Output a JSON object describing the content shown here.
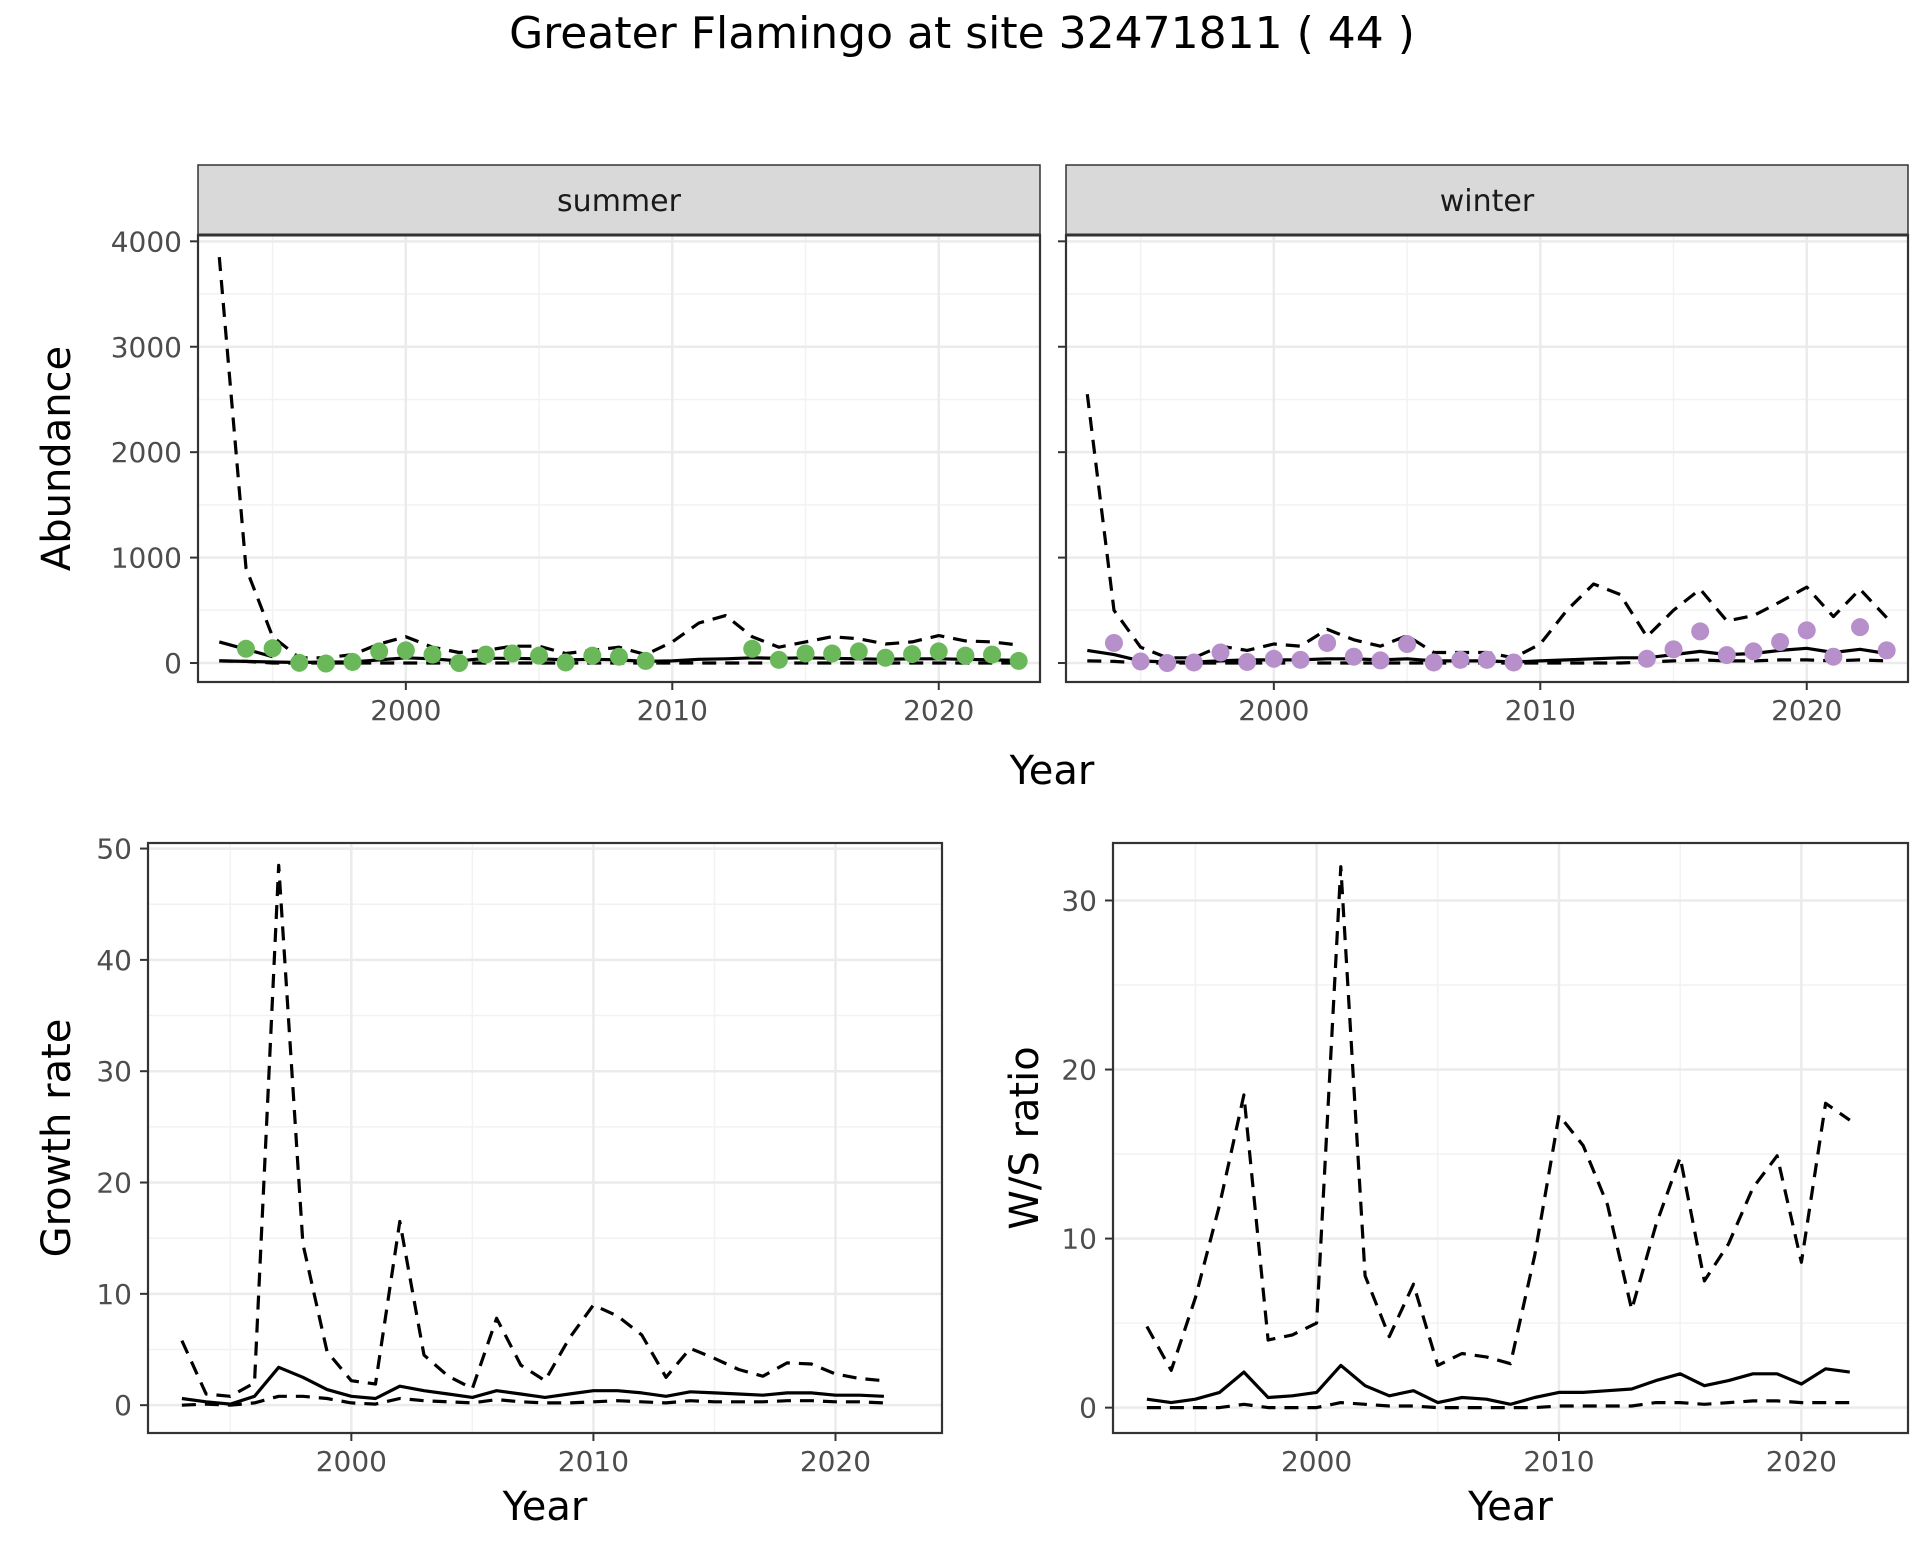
{
  "figure": {
    "title": "Greater Flamingo at site 32471811 ( 44 )"
  },
  "chart_data": [
    {
      "id": "summer",
      "type": "line",
      "facet_label": "summer",
      "xlabel": "",
      "ylabel": "Abundance",
      "xlim": [
        1992.2,
        2023.8
      ],
      "ylim": [
        -180,
        4060
      ],
      "x_ticks": [
        2000,
        2010,
        2020
      ],
      "y_ticks": [
        0,
        1000,
        2000,
        3000,
        4000
      ],
      "grid": true,
      "point_color": "#6ab85a",
      "years": [
        1993,
        1994,
        1995,
        1996,
        1997,
        1998,
        1999,
        2000,
        2001,
        2002,
        2003,
        2004,
        2005,
        2006,
        2007,
        2008,
        2009,
        2010,
        2011,
        2012,
        2013,
        2014,
        2015,
        2016,
        2017,
        2018,
        2019,
        2020,
        2021,
        2022,
        2023
      ],
      "mean": [
        20,
        15,
        10,
        5,
        10,
        10,
        30,
        50,
        40,
        20,
        45,
        45,
        40,
        30,
        35,
        30,
        15,
        20,
        35,
        40,
        50,
        45,
        50,
        45,
        40,
        35,
        40,
        40,
        35,
        30,
        25
      ],
      "upper": [
        3850,
        900,
        250,
        50,
        50,
        80,
        180,
        250,
        150,
        100,
        120,
        160,
        160,
        90,
        120,
        150,
        80,
        200,
        380,
        450,
        250,
        150,
        200,
        250,
        230,
        180,
        200,
        260,
        210,
        200,
        170
      ],
      "lower": [
        20,
        15,
        0,
        0,
        0,
        0,
        0,
        0,
        0,
        0,
        0,
        0,
        0,
        0,
        0,
        0,
        0,
        0,
        0,
        0,
        0,
        0,
        0,
        0,
        0,
        0,
        0,
        0,
        0,
        0,
        0
      ],
      "trend2": [
        200,
        130,
        60
      ],
      "points": [
        [
          1994,
          135
        ],
        [
          1995,
          140
        ],
        [
          1996,
          2
        ],
        [
          1997,
          -5
        ],
        [
          1998,
          10
        ],
        [
          1999,
          110
        ],
        [
          2000,
          120
        ],
        [
          2001,
          80
        ],
        [
          2002,
          0
        ],
        [
          2003,
          80
        ],
        [
          2004,
          90
        ],
        [
          2005,
          70
        ],
        [
          2006,
          5
        ],
        [
          2007,
          70
        ],
        [
          2008,
          60
        ],
        [
          2009,
          20
        ],
        [
          2013,
          135
        ],
        [
          2014,
          30
        ],
        [
          2015,
          90
        ],
        [
          2016,
          90
        ],
        [
          2017,
          110
        ],
        [
          2018,
          50
        ],
        [
          2019,
          85
        ],
        [
          2020,
          110
        ],
        [
          2021,
          70
        ],
        [
          2022,
          80
        ],
        [
          2023,
          20
        ]
      ]
    },
    {
      "id": "winter",
      "type": "line",
      "facet_label": "winter",
      "xlabel": "",
      "ylabel": "",
      "xlim": [
        1992.2,
        2023.8
      ],
      "ylim": [
        -180,
        4060
      ],
      "x_ticks": [
        2000,
        2010,
        2020
      ],
      "y_ticks": [
        0,
        1000,
        2000,
        3000,
        4000
      ],
      "grid": true,
      "point_color": "#b78fca",
      "years": [
        1993,
        1994,
        1995,
        1996,
        1997,
        1998,
        1999,
        2000,
        2001,
        2002,
        2003,
        2004,
        2005,
        2006,
        2007,
        2008,
        2009,
        2010,
        2011,
        2012,
        2013,
        2014,
        2015,
        2016,
        2017,
        2018,
        2019,
        2020,
        2021,
        2022,
        2023
      ],
      "mean": [
        120,
        80,
        20,
        10,
        10,
        20,
        30,
        30,
        30,
        40,
        40,
        30,
        40,
        20,
        20,
        20,
        10,
        20,
        30,
        40,
        50,
        50,
        80,
        110,
        80,
        90,
        120,
        140,
        100,
        130,
        90
      ],
      "upper": [
        2550,
        500,
        150,
        50,
        50,
        160,
        120,
        180,
        160,
        320,
        220,
        160,
        260,
        100,
        100,
        100,
        50,
        180,
        500,
        750,
        650,
        250,
        500,
        700,
        400,
        450,
        580,
        720,
        440,
        700,
        430
      ],
      "lower": [
        20,
        15,
        0,
        0,
        0,
        0,
        0,
        0,
        0,
        0,
        0,
        0,
        0,
        0,
        0,
        0,
        0,
        0,
        0,
        0,
        0,
        10,
        20,
        30,
        20,
        20,
        30,
        30,
        20,
        30,
        20
      ],
      "points": [
        [
          1994,
          190
        ],
        [
          1995,
          15
        ],
        [
          1996,
          0
        ],
        [
          1997,
          5
        ],
        [
          1998,
          100
        ],
        [
          1999,
          10
        ],
        [
          2000,
          40
        ],
        [
          2001,
          30
        ],
        [
          2002,
          190
        ],
        [
          2003,
          60
        ],
        [
          2004,
          25
        ],
        [
          2005,
          180
        ],
        [
          2006,
          5
        ],
        [
          2007,
          30
        ],
        [
          2008,
          30
        ],
        [
          2009,
          5
        ],
        [
          2014,
          40
        ],
        [
          2015,
          130
        ],
        [
          2016,
          300
        ],
        [
          2017,
          75
        ],
        [
          2018,
          110
        ],
        [
          2019,
          200
        ],
        [
          2020,
          310
        ],
        [
          2021,
          60
        ],
        [
          2022,
          340
        ],
        [
          2023,
          120
        ]
      ]
    },
    {
      "id": "growth",
      "type": "line",
      "xlabel": "Year",
      "ylabel": "Growth rate",
      "xlim": [
        1991.6,
        2024.4
      ],
      "ylim": [
        -2.5,
        50.5
      ],
      "x_ticks": [
        2000,
        2010,
        2020
      ],
      "y_ticks": [
        0,
        10,
        20,
        30,
        40,
        50
      ],
      "grid": true,
      "years": [
        1993,
        1994,
        1995,
        1996,
        1997,
        1998,
        1999,
        2000,
        2001,
        2002,
        2003,
        2004,
        2005,
        2006,
        2007,
        2008,
        2009,
        2010,
        2011,
        2012,
        2013,
        2014,
        2015,
        2016,
        2017,
        2018,
        2019,
        2020,
        2021,
        2022
      ],
      "mean": [
        0.6,
        0.3,
        0.1,
        0.8,
        3.4,
        2.5,
        1.4,
        0.8,
        0.6,
        1.7,
        1.3,
        1.0,
        0.7,
        1.3,
        1.0,
        0.7,
        1.0,
        1.3,
        1.3,
        1.1,
        0.8,
        1.2,
        1.1,
        1.0,
        0.9,
        1.1,
        1.1,
        0.9,
        0.9,
        0.8
      ],
      "upper": [
        5.8,
        1.0,
        0.8,
        2.0,
        48.5,
        14.5,
        4.8,
        2.2,
        1.9,
        16.5,
        4.5,
        2.6,
        1.5,
        7.8,
        3.6,
        2.2,
        6.0,
        9.0,
        8.0,
        6.3,
        2.5,
        5.1,
        4.2,
        3.2,
        2.6,
        3.8,
        3.7,
        2.8,
        2.4,
        2.2
      ],
      "lower": [
        0.0,
        0.1,
        0.0,
        0.2,
        0.8,
        0.8,
        0.6,
        0.2,
        0.1,
        0.6,
        0.4,
        0.3,
        0.2,
        0.5,
        0.3,
        0.2,
        0.2,
        0.3,
        0.4,
        0.3,
        0.2,
        0.4,
        0.3,
        0.3,
        0.3,
        0.4,
        0.4,
        0.3,
        0.3,
        0.2
      ]
    },
    {
      "id": "ratio",
      "type": "line",
      "xlabel": "Year",
      "ylabel": "W/S ratio",
      "xlim": [
        1991.6,
        2024.4
      ],
      "ylim": [
        -1.5,
        33.4
      ],
      "x_ticks": [
        2000,
        2010,
        2020
      ],
      "y_ticks": [
        0,
        10,
        20,
        30
      ],
      "grid": true,
      "years": [
        1993,
        1994,
        1995,
        1996,
        1997,
        1998,
        1999,
        2000,
        2001,
        2002,
        2003,
        2004,
        2005,
        2006,
        2007,
        2008,
        2009,
        2010,
        2011,
        2012,
        2013,
        2014,
        2015,
        2016,
        2017,
        2018,
        2019,
        2020,
        2021,
        2022
      ],
      "mean": [
        0.5,
        0.3,
        0.5,
        0.9,
        2.1,
        0.6,
        0.7,
        0.9,
        2.5,
        1.3,
        0.7,
        1.0,
        0.3,
        0.6,
        0.5,
        0.2,
        0.6,
        0.9,
        0.9,
        1.0,
        1.1,
        1.6,
        2.0,
        1.3,
        1.6,
        2.0,
        2.0,
        1.4,
        2.3,
        2.1
      ],
      "upper": [
        4.8,
        2.2,
        6.5,
        12.0,
        18.5,
        4.0,
        4.3,
        5.0,
        32.0,
        7.8,
        4.2,
        7.3,
        2.5,
        3.2,
        3.0,
        2.6,
        9.0,
        17.3,
        15.5,
        12.0,
        5.8,
        10.8,
        14.8,
        7.5,
        9.7,
        13.0,
        14.9,
        8.6,
        18.0,
        17.0
      ],
      "lower": [
        0.0,
        0.0,
        0.0,
        0.0,
        0.2,
        0.0,
        0.0,
        0.0,
        0.3,
        0.2,
        0.1,
        0.1,
        0.0,
        0.0,
        0.0,
        0.0,
        0.0,
        0.1,
        0.1,
        0.1,
        0.1,
        0.3,
        0.3,
        0.2,
        0.3,
        0.4,
        0.4,
        0.3,
        0.3,
        0.3
      ]
    }
  ],
  "shared_xlabel_top": "Year"
}
